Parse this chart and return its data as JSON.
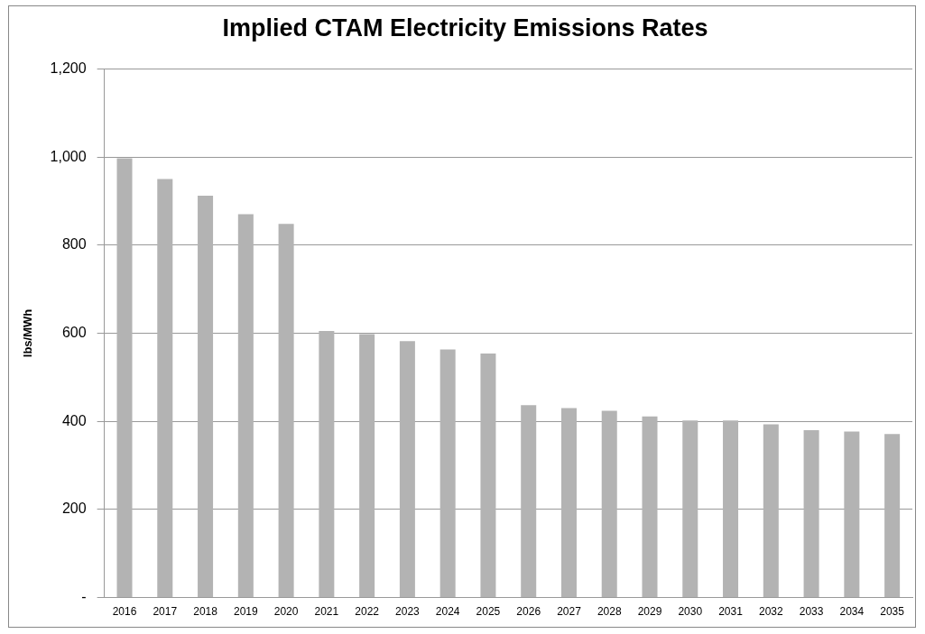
{
  "chart_data": {
    "type": "bar",
    "title": "Implied CTAM Electricity Emissions Rates",
    "ylabel": "lbs/MWh",
    "categories": [
      "2016",
      "2017",
      "2018",
      "2019",
      "2020",
      "2021",
      "2022",
      "2023",
      "2024",
      "2025",
      "2026",
      "2027",
      "2028",
      "2029",
      "2030",
      "2031",
      "2032",
      "2033",
      "2034",
      "2035"
    ],
    "values": [
      997,
      950,
      912,
      870,
      848,
      605,
      598,
      582,
      563,
      554,
      437,
      430,
      424,
      411,
      402,
      402,
      393,
      380,
      377,
      371
    ],
    "color": "#b3b3b3",
    "ylim": [
      0,
      1200
    ],
    "yticks": [
      {
        "value": 0,
        "label": "-"
      },
      {
        "value": 200,
        "label": "200"
      },
      {
        "value": 400,
        "label": "400"
      },
      {
        "value": 600,
        "label": "600"
      },
      {
        "value": 800,
        "label": "800"
      },
      {
        "value": 1000,
        "label": "1,000"
      },
      {
        "value": 1200,
        "label": "1,200"
      }
    ],
    "grid": "y",
    "legend": false
  }
}
